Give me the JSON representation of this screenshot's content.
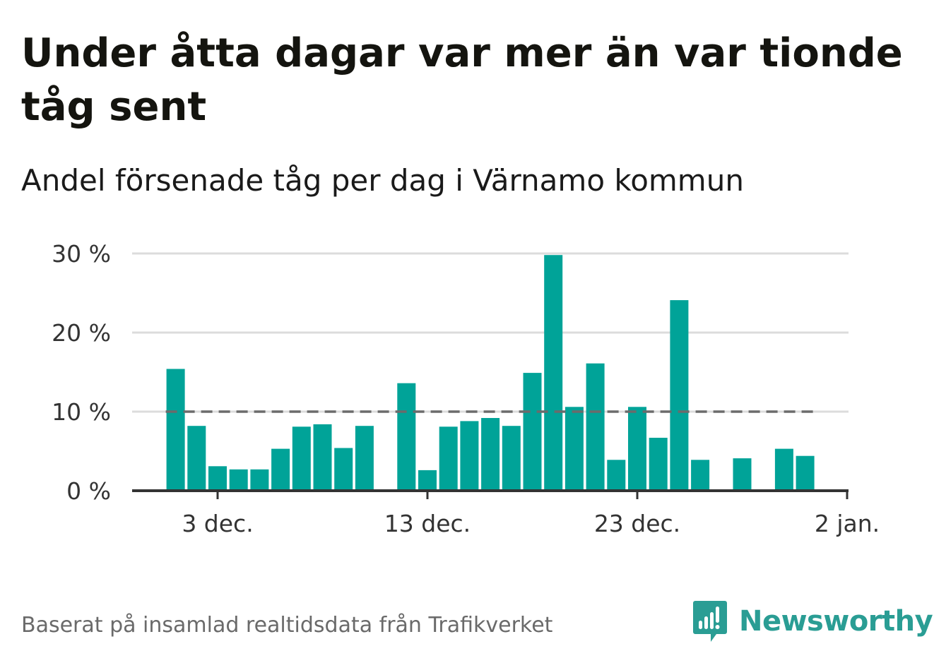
{
  "title": "Under åtta dagar var mer än var tionde tåg sent",
  "subtitle": "Andel försenade tåg per dag i Värnamo kommun",
  "footer": "Baserat på insamlad realtidsdata från Trafikverket",
  "brand": {
    "name": "Newsworthy",
    "icon": "newsworthy-logo-icon",
    "color": "#2a9d94"
  },
  "chart_data": {
    "type": "bar",
    "x": [
      "2023-12-01",
      "2023-12-02",
      "2023-12-03",
      "2023-12-04",
      "2023-12-05",
      "2023-12-06",
      "2023-12-07",
      "2023-12-08",
      "2023-12-09",
      "2023-12-10",
      "2023-12-11",
      "2023-12-12",
      "2023-12-13",
      "2023-12-14",
      "2023-12-15",
      "2023-12-16",
      "2023-12-17",
      "2023-12-18",
      "2023-12-19",
      "2023-12-20",
      "2023-12-21",
      "2023-12-22",
      "2023-12-23",
      "2023-12-24",
      "2023-12-25",
      "2023-12-26",
      "2023-12-27",
      "2023-12-28",
      "2023-12-29",
      "2023-12-30",
      "2023-12-31"
    ],
    "values": [
      15.4,
      8.2,
      3.1,
      2.7,
      2.7,
      5.3,
      8.1,
      8.4,
      5.4,
      8.2,
      0,
      13.6,
      2.6,
      8.1,
      8.8,
      9.2,
      8.2,
      14.9,
      29.8,
      10.6,
      16.1,
      3.9,
      10.6,
      6.7,
      24.1,
      3.9,
      0,
      4.1,
      0,
      5.3,
      4.4
    ],
    "bar_color": "#00a398",
    "reference_line": {
      "value": 10,
      "style": "dashed",
      "color": "#6b6b6b"
    },
    "ylim": [
      0,
      30
    ],
    "y_ticks": [
      {
        "value": 0,
        "label": "0 %"
      },
      {
        "value": 10,
        "label": "10 %"
      },
      {
        "value": 20,
        "label": "20 %"
      },
      {
        "value": 30,
        "label": "30 %"
      }
    ],
    "x_ticks": [
      {
        "date": "2023-12-03",
        "label": "3 dec."
      },
      {
        "date": "2023-12-13",
        "label": "13 dec."
      },
      {
        "date": "2023-12-23",
        "label": "23 dec."
      },
      {
        "date": "2024-01-02",
        "label": "2 jan."
      }
    ],
    "grid": true,
    "xlabel": "",
    "ylabel": ""
  }
}
